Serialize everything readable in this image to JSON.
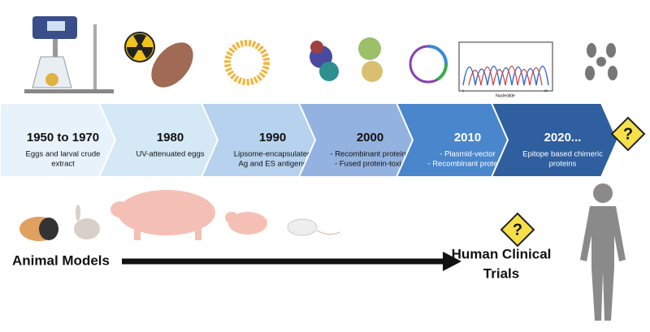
{
  "timeline": {
    "stages": [
      {
        "year": "1950 to 1970",
        "lines": [
          "Eggs and larval crude",
          "extract"
        ]
      },
      {
        "year": "1980",
        "lines": [
          "UV-attenuated eggs"
        ]
      },
      {
        "year": "1990",
        "lines": [
          "Lipsome-encapsulated",
          "Ag and ES antigens"
        ]
      },
      {
        "year": "2000",
        "lines": [
          "- Recombinant proteins",
          "- Fused protein-toxin"
        ]
      },
      {
        "year": "2010",
        "lines": [
          "- Plasmid-vector",
          "- Recombinant proteins"
        ]
      },
      {
        "year": "2020...",
        "lines": [
          "Epitope based chimeric",
          "proteins"
        ]
      }
    ]
  },
  "chromatogram": {
    "axis_label": "Nucleotide",
    "start": "1",
    "end": "10"
  },
  "question_marks": [
    "?",
    "?"
  ],
  "bottom": {
    "left_label": "Animal Models",
    "right_label": [
      "Human Clinical",
      "Trials"
    ]
  }
}
